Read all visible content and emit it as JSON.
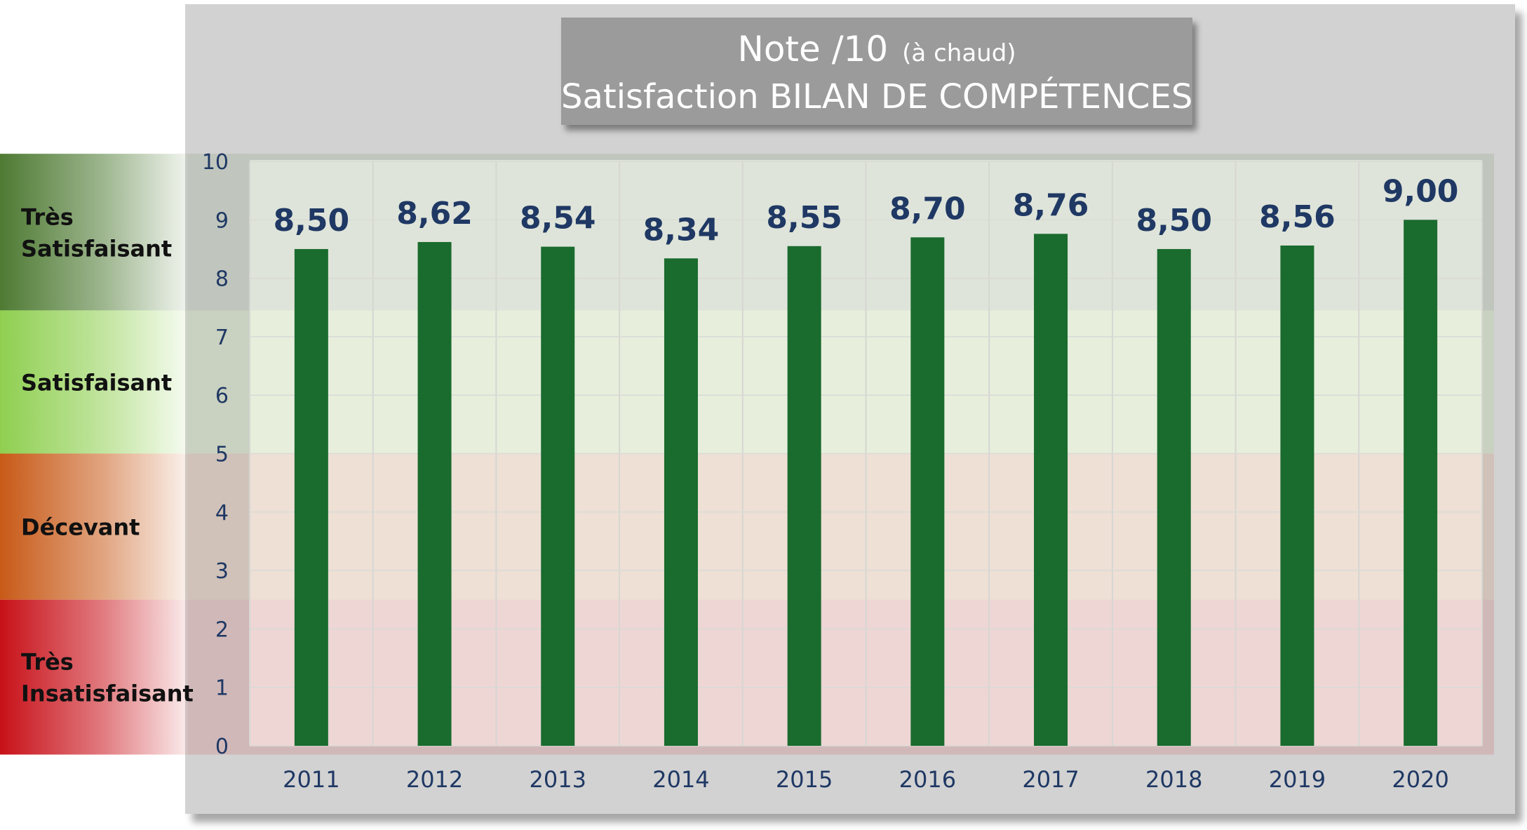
{
  "title": {
    "main": "Note /10",
    "sub": "(à chaud)",
    "line2": "Satisfaction BILAN DE COMPÉTENCES"
  },
  "bands": [
    {
      "label_lines": [
        "Très",
        "Satisfaisant"
      ],
      "from": 7.45,
      "to": 10.13,
      "color": "#4e7a33"
    },
    {
      "label_lines": [
        "Satisfaisant"
      ],
      "from": 5.0,
      "to": 7.45,
      "color": "#8fcf50"
    },
    {
      "label_lines": [
        "Décevant"
      ],
      "from": 2.5,
      "to": 5.0,
      "color": "#c85a18"
    },
    {
      "label_lines": [
        "Très",
        "Insatisfaisant"
      ],
      "from": -0.15,
      "to": 2.5,
      "color": "#c81018"
    }
  ],
  "colors": {
    "panel": "#d2d2d2",
    "title_box": "#9b9b9b",
    "bar": "#1a6b2e",
    "value_label": "#1f3864",
    "tick_label": "#1f3864"
  },
  "chart_data": {
    "type": "bar",
    "categories": [
      "2011",
      "2012",
      "2013",
      "2014",
      "2015",
      "2016",
      "2017",
      "2018",
      "2019",
      "2020"
    ],
    "values": [
      8.5,
      8.62,
      8.54,
      8.34,
      8.55,
      8.7,
      8.76,
      8.5,
      8.56,
      9.0
    ],
    "value_labels": [
      "8,50",
      "8,62",
      "8,54",
      "8,34",
      "8,55",
      "8,70",
      "8,76",
      "8,50",
      "8,56",
      "9,00"
    ],
    "yticks": [
      "0",
      "1",
      "2",
      "3",
      "4",
      "5",
      "6",
      "7",
      "8",
      "9",
      "10"
    ],
    "ylim": [
      0,
      10
    ],
    "xlabel": "",
    "ylabel": "",
    "grid": true,
    "legend": "none"
  }
}
